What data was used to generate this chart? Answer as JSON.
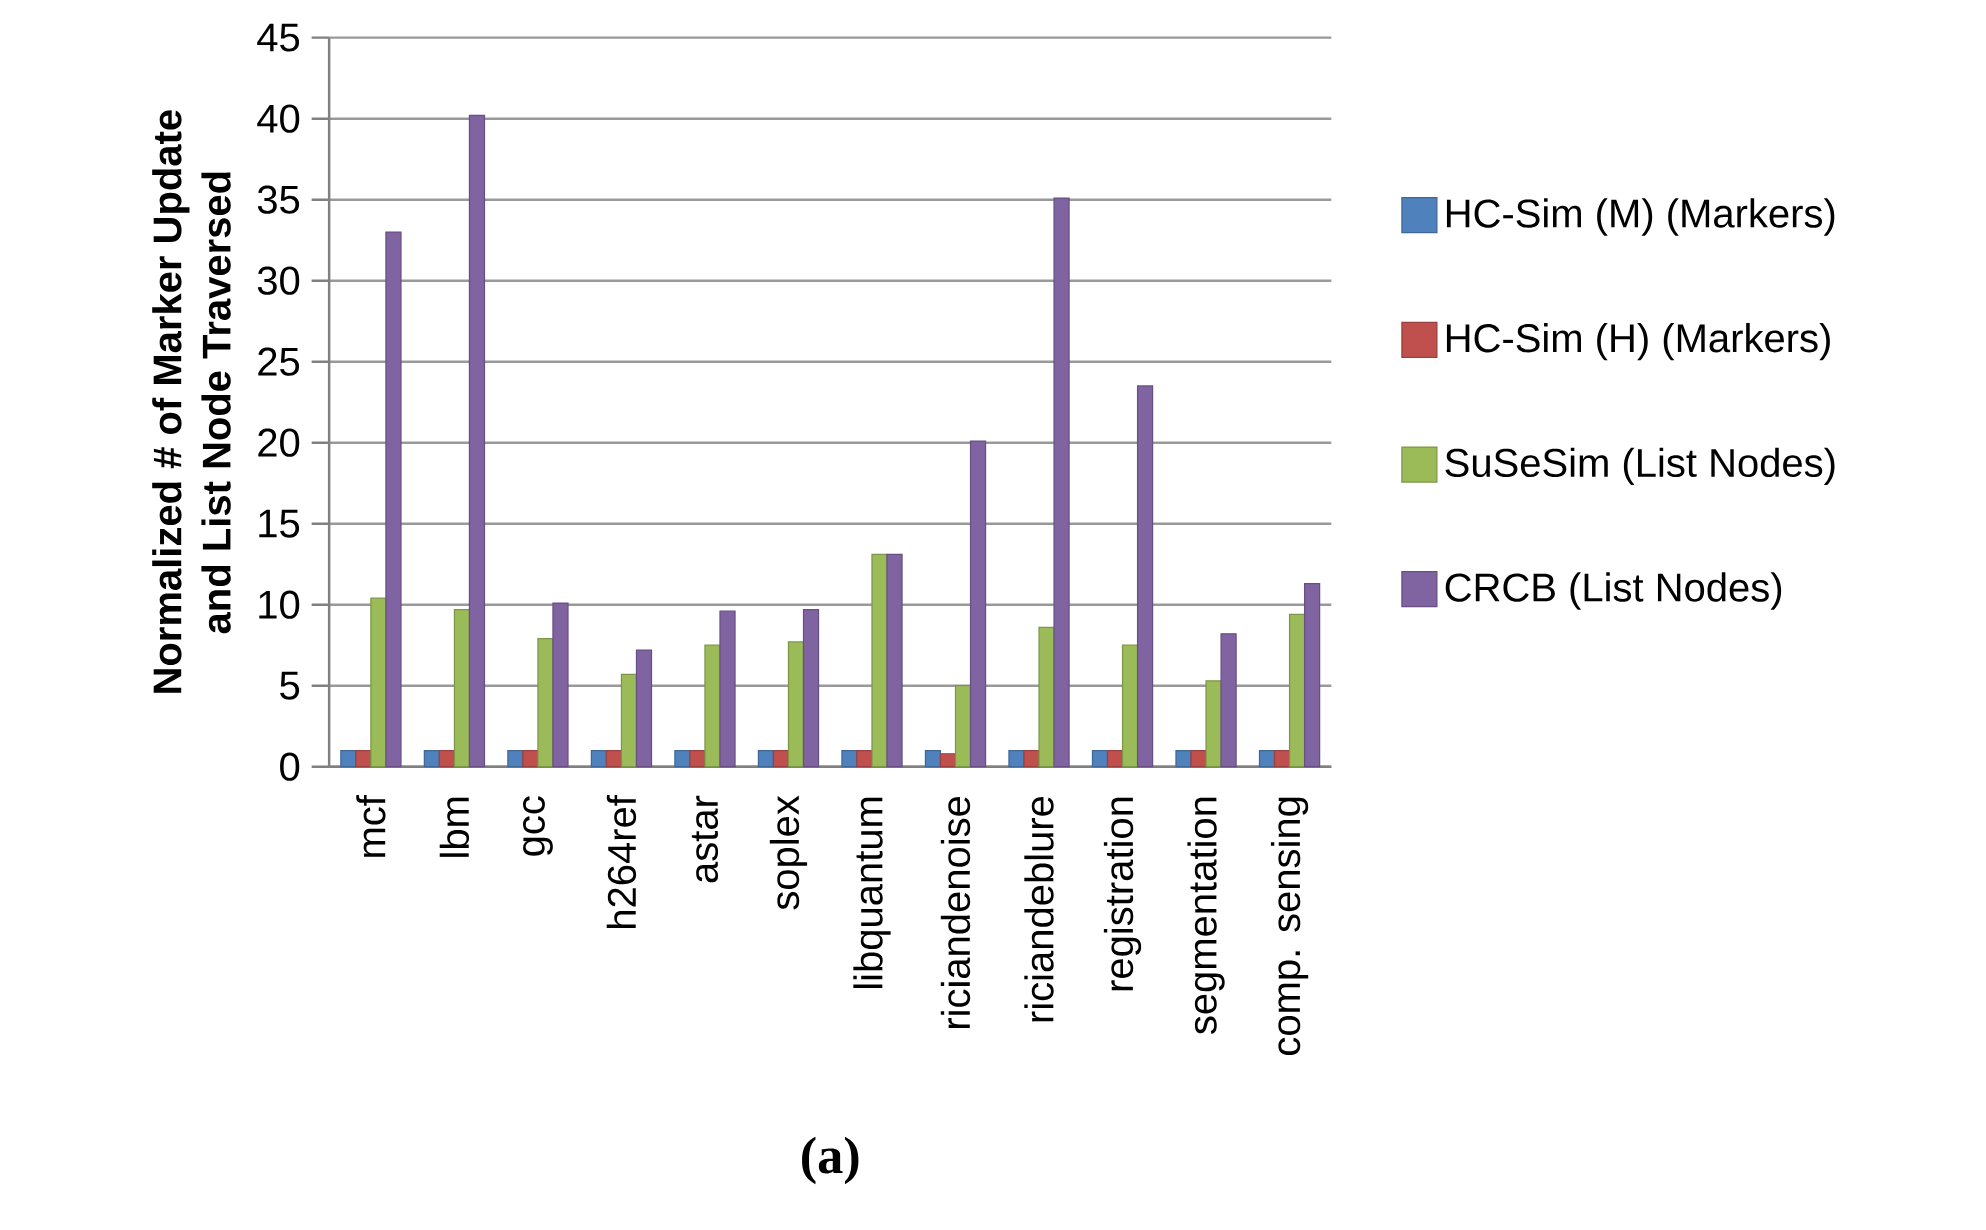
{
  "chart_data": {
    "type": "bar",
    "ylabel": "Normalized # of Marker Update and List Node Traversed",
    "categories": [
      "mcf",
      "lbm",
      "gcc",
      "h264ref",
      "astar",
      "soplex",
      "libquantum",
      "riciandenoise",
      "riciandeblure",
      "registration",
      "segmentation",
      "comp. sensing"
    ],
    "series": [
      {
        "name": "HC-Sim (M) (Markers)",
        "color": "#4f81bd",
        "values": [
          1,
          1,
          1,
          1,
          1,
          1,
          1,
          1,
          1,
          1,
          1,
          1
        ]
      },
      {
        "name": "HC-Sim (H) (Markers)",
        "color": "#c0504d",
        "values": [
          1,
          1,
          1,
          1,
          1,
          1,
          1,
          0.8,
          1,
          1,
          1,
          1
        ]
      },
      {
        "name": "SuSeSim (List Nodes)",
        "color": "#9bbb59",
        "values": [
          10.4,
          9.7,
          7.9,
          5.7,
          7.5,
          7.7,
          13.1,
          5.0,
          8.6,
          7.5,
          5.3,
          9.4
        ]
      },
      {
        "name": "CRCB (List Nodes)",
        "color": "#8064a2",
        "values": [
          33.0,
          40.2,
          10.1,
          7.2,
          9.6,
          9.7,
          13.1,
          20.1,
          35.1,
          23.5,
          8.2,
          11.3
        ]
      }
    ],
    "ylim": [
      0,
      45
    ],
    "yticks": [
      0,
      5,
      10,
      15,
      20,
      25,
      30,
      35,
      40,
      45
    ],
    "grid": "y",
    "legend": "right",
    "annotations": [
      "(a)"
    ]
  }
}
